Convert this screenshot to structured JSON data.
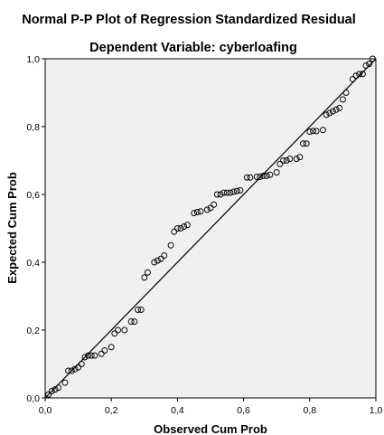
{
  "chart_data": {
    "type": "scatter",
    "title": "Normal P-P Plot of Regression Standardized Residual",
    "subtitle": "Dependent Variable: cyberloafing",
    "xlabel": "Observed Cum Prob",
    "ylabel": "Expected Cum Prob",
    "xlim": [
      0,
      1
    ],
    "ylim": [
      0,
      1
    ],
    "xticks": [
      "0,0",
      "0,2",
      "0,4",
      "0,6",
      "0,8",
      "1,0"
    ],
    "yticks": [
      "0,0",
      "0,2",
      "0,4",
      "0,6",
      "0,8",
      "1,0"
    ],
    "grid": false,
    "reference_line": [
      [
        0,
        0
      ],
      [
        1,
        1
      ]
    ],
    "colors": {
      "plot_background": "#f0f0f0",
      "point_stroke": "#000000",
      "line": "#000000"
    },
    "points": [
      [
        0.01,
        0.01
      ],
      [
        0.02,
        0.02
      ],
      [
        0.03,
        0.025
      ],
      [
        0.04,
        0.03
      ],
      [
        0.06,
        0.045
      ],
      [
        0.07,
        0.08
      ],
      [
        0.08,
        0.08
      ],
      [
        0.09,
        0.085
      ],
      [
        0.1,
        0.09
      ],
      [
        0.11,
        0.1
      ],
      [
        0.12,
        0.12
      ],
      [
        0.13,
        0.125
      ],
      [
        0.14,
        0.125
      ],
      [
        0.15,
        0.125
      ],
      [
        0.17,
        0.13
      ],
      [
        0.18,
        0.14
      ],
      [
        0.2,
        0.15
      ],
      [
        0.21,
        0.19
      ],
      [
        0.22,
        0.2
      ],
      [
        0.24,
        0.2
      ],
      [
        0.26,
        0.225
      ],
      [
        0.27,
        0.225
      ],
      [
        0.28,
        0.26
      ],
      [
        0.29,
        0.26
      ],
      [
        0.3,
        0.355
      ],
      [
        0.31,
        0.37
      ],
      [
        0.33,
        0.4
      ],
      [
        0.34,
        0.405
      ],
      [
        0.35,
        0.41
      ],
      [
        0.36,
        0.42
      ],
      [
        0.38,
        0.45
      ],
      [
        0.39,
        0.49
      ],
      [
        0.4,
        0.5
      ],
      [
        0.41,
        0.5
      ],
      [
        0.42,
        0.505
      ],
      [
        0.43,
        0.51
      ],
      [
        0.45,
        0.545
      ],
      [
        0.46,
        0.548
      ],
      [
        0.47,
        0.55
      ],
      [
        0.49,
        0.555
      ],
      [
        0.5,
        0.56
      ],
      [
        0.51,
        0.57
      ],
      [
        0.52,
        0.6
      ],
      [
        0.53,
        0.6
      ],
      [
        0.54,
        0.605
      ],
      [
        0.55,
        0.605
      ],
      [
        0.56,
        0.605
      ],
      [
        0.57,
        0.608
      ],
      [
        0.58,
        0.61
      ],
      [
        0.59,
        0.612
      ],
      [
        0.61,
        0.65
      ],
      [
        0.62,
        0.65
      ],
      [
        0.64,
        0.652
      ],
      [
        0.65,
        0.652
      ],
      [
        0.66,
        0.655
      ],
      [
        0.67,
        0.655
      ],
      [
        0.68,
        0.658
      ],
      [
        0.7,
        0.665
      ],
      [
        0.71,
        0.69
      ],
      [
        0.72,
        0.7
      ],
      [
        0.73,
        0.7
      ],
      [
        0.74,
        0.705
      ],
      [
        0.76,
        0.705
      ],
      [
        0.77,
        0.71
      ],
      [
        0.78,
        0.75
      ],
      [
        0.79,
        0.75
      ],
      [
        0.8,
        0.785
      ],
      [
        0.81,
        0.787
      ],
      [
        0.82,
        0.787
      ],
      [
        0.84,
        0.79
      ],
      [
        0.85,
        0.835
      ],
      [
        0.86,
        0.84
      ],
      [
        0.87,
        0.845
      ],
      [
        0.88,
        0.85
      ],
      [
        0.89,
        0.855
      ],
      [
        0.9,
        0.88
      ],
      [
        0.91,
        0.9
      ],
      [
        0.93,
        0.94
      ],
      [
        0.94,
        0.95
      ],
      [
        0.95,
        0.955
      ],
      [
        0.96,
        0.955
      ],
      [
        0.97,
        0.98
      ],
      [
        0.98,
        0.985
      ],
      [
        0.99,
        1.0
      ]
    ]
  }
}
